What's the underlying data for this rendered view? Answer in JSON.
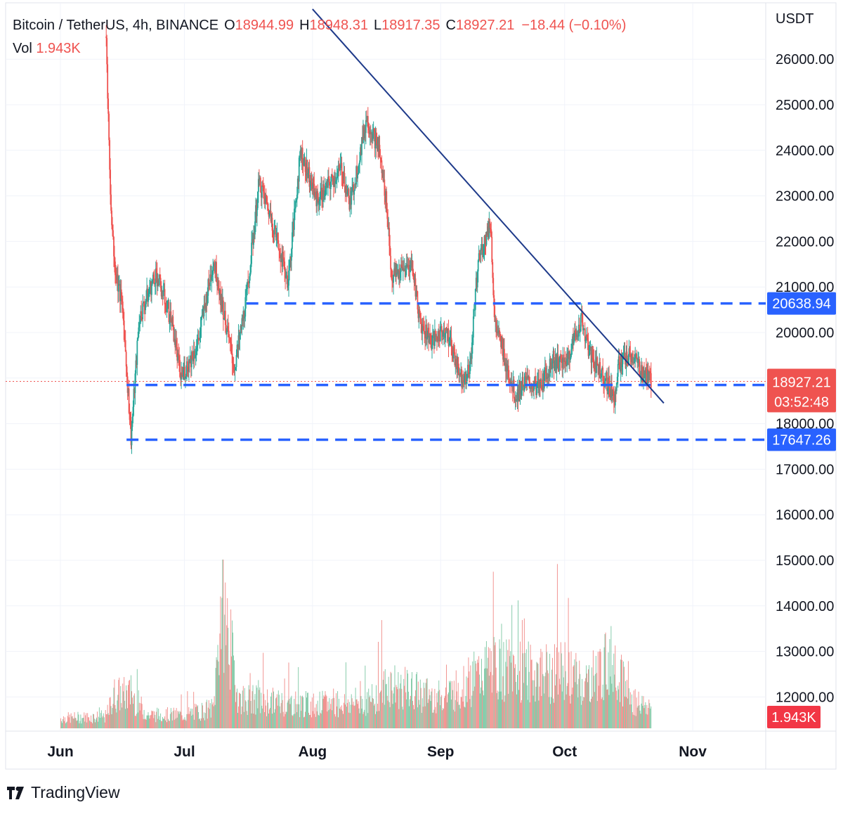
{
  "legend": {
    "symbol": "Bitcoin / TetherUS, 4h, BINANCE",
    "open_label": "O",
    "open": "18944.99",
    "high_label": "H",
    "high": "18948.31",
    "low_label": "L",
    "low": "18917.35",
    "close_label": "C",
    "close": "18927.21",
    "change": "−18.44 (−0.10%)",
    "vol_label": "Vol",
    "vol": "1.943K"
  },
  "axis_unit": "USDT",
  "brand": "TradingView",
  "colors": {
    "up": "#26a69a",
    "down": "#ef5350",
    "level": "#2962ff",
    "trend": "#1e3a8a",
    "grid": "#f0f3fa",
    "price_tag": "#ef5350",
    "level_tag": "#2962ff"
  },
  "chart_data": {
    "type": "candlestick",
    "title": "",
    "timeframe": "4h",
    "x_ticks": [
      "Jun",
      "Jul",
      "Aug",
      "Sep",
      "Oct",
      "Nov"
    ],
    "y_ticks": [
      12000,
      13000,
      14000,
      15000,
      16000,
      17000,
      18000,
      19000,
      20000,
      21000,
      22000,
      23000,
      24000,
      25000,
      26000
    ],
    "y_tick_labels": [
      "12000.00",
      "13000.00",
      "14000.00",
      "15000.00",
      "16000.00",
      "17000.00",
      "18000.00",
      "19000.00",
      "20000.00",
      "21000.00",
      "22000.00",
      "23000.00",
      "24000.00",
      "25000.00",
      "26000.00"
    ],
    "ylim": [
      11400,
      27000
    ],
    "price_path": [
      {
        "date": "2022-06-12",
        "price": 26500
      },
      {
        "date": "2022-06-13",
        "price": 23000
      },
      {
        "date": "2022-06-14",
        "price": 21500
      },
      {
        "date": "2022-06-16",
        "price": 20500
      },
      {
        "date": "2022-06-18",
        "price": 17700
      },
      {
        "date": "2022-06-20",
        "price": 20300
      },
      {
        "date": "2022-06-24",
        "price": 21300
      },
      {
        "date": "2022-06-28",
        "price": 20200
      },
      {
        "date": "2022-06-30",
        "price": 19000
      },
      {
        "date": "2022-07-04",
        "price": 19700
      },
      {
        "date": "2022-07-08",
        "price": 21600
      },
      {
        "date": "2022-07-13",
        "price": 19200
      },
      {
        "date": "2022-07-16",
        "price": 20800
      },
      {
        "date": "2022-07-19",
        "price": 23300
      },
      {
        "date": "2022-07-22",
        "price": 22500
      },
      {
        "date": "2022-07-26",
        "price": 21100
      },
      {
        "date": "2022-07-29",
        "price": 24000
      },
      {
        "date": "2022-08-02",
        "price": 22900
      },
      {
        "date": "2022-08-08",
        "price": 23600
      },
      {
        "date": "2022-08-10",
        "price": 22800
      },
      {
        "date": "2022-08-14",
        "price": 24700
      },
      {
        "date": "2022-08-17",
        "price": 24000
      },
      {
        "date": "2022-08-19",
        "price": 22700
      },
      {
        "date": "2022-08-20",
        "price": 21200
      },
      {
        "date": "2022-08-25",
        "price": 21500
      },
      {
        "date": "2022-08-27",
        "price": 20200
      },
      {
        "date": "2022-08-30",
        "price": 19800
      },
      {
        "date": "2022-09-02",
        "price": 20100
      },
      {
        "date": "2022-09-06",
        "price": 19000
      },
      {
        "date": "2022-09-08",
        "price": 19200
      },
      {
        "date": "2022-09-10",
        "price": 21600
      },
      {
        "date": "2022-09-13",
        "price": 22400
      },
      {
        "date": "2022-09-14",
        "price": 20200
      },
      {
        "date": "2022-09-19",
        "price": 18600
      },
      {
        "date": "2022-09-21",
        "price": 18900
      },
      {
        "date": "2022-09-25",
        "price": 18800
      },
      {
        "date": "2022-09-28",
        "price": 19400
      },
      {
        "date": "2022-10-01",
        "price": 19300
      },
      {
        "date": "2022-10-05",
        "price": 20300
      },
      {
        "date": "2022-10-07",
        "price": 19500
      },
      {
        "date": "2022-10-10",
        "price": 19100
      },
      {
        "date": "2022-10-13",
        "price": 18600
      },
      {
        "date": "2022-10-14",
        "price": 19300
      },
      {
        "date": "2022-10-17",
        "price": 19500
      },
      {
        "date": "2022-10-20",
        "price": 19100
      },
      {
        "date": "2022-10-22",
        "price": 18927
      }
    ],
    "horizontal_levels": [
      {
        "label": "20638.94",
        "price": 20638.94,
        "from_date": "2022-07-16"
      },
      {
        "label": "18848.22",
        "price": 18848.22,
        "from_date": "2022-06-17"
      },
      {
        "label": "17647.26",
        "price": 17647.26,
        "from_date": "2022-06-17"
      }
    ],
    "trendline": {
      "from": {
        "date": "2022-08-01",
        "price": 27100
      },
      "to": {
        "date": "2022-10-25",
        "price": 18450
      }
    },
    "last_price": {
      "label": "18927.21",
      "price": 18927.21,
      "countdown": "03:52:48"
    },
    "volume_last": "1.943K",
    "volume_profile": [
      {
        "date": "2022-06-01",
        "vol": 0.3
      },
      {
        "date": "2022-06-12",
        "vol": 0.35
      },
      {
        "date": "2022-06-14",
        "vol": 1.0
      },
      {
        "date": "2022-06-18",
        "vol": 1.0
      },
      {
        "date": "2022-06-22",
        "vol": 0.4
      },
      {
        "date": "2022-07-01",
        "vol": 0.4
      },
      {
        "date": "2022-07-08",
        "vol": 0.6
      },
      {
        "date": "2022-07-10",
        "vol": 4.0
      },
      {
        "date": "2022-07-14",
        "vol": 0.9
      },
      {
        "date": "2022-07-20",
        "vol": 0.8
      },
      {
        "date": "2022-08-01",
        "vol": 0.7
      },
      {
        "date": "2022-08-15",
        "vol": 0.8
      },
      {
        "date": "2022-08-19",
        "vol": 1.3
      },
      {
        "date": "2022-09-01",
        "vol": 0.9
      },
      {
        "date": "2022-09-07",
        "vol": 1.3
      },
      {
        "date": "2022-09-13",
        "vol": 1.8
      },
      {
        "date": "2022-09-19",
        "vol": 1.7
      },
      {
        "date": "2022-09-25",
        "vol": 1.6
      },
      {
        "date": "2022-10-01",
        "vol": 1.7
      },
      {
        "date": "2022-10-06",
        "vol": 1.3
      },
      {
        "date": "2022-10-13",
        "vol": 2.1
      },
      {
        "date": "2022-10-17",
        "vol": 0.8
      },
      {
        "date": "2022-10-22",
        "vol": 0.6
      }
    ],
    "grid": true
  }
}
